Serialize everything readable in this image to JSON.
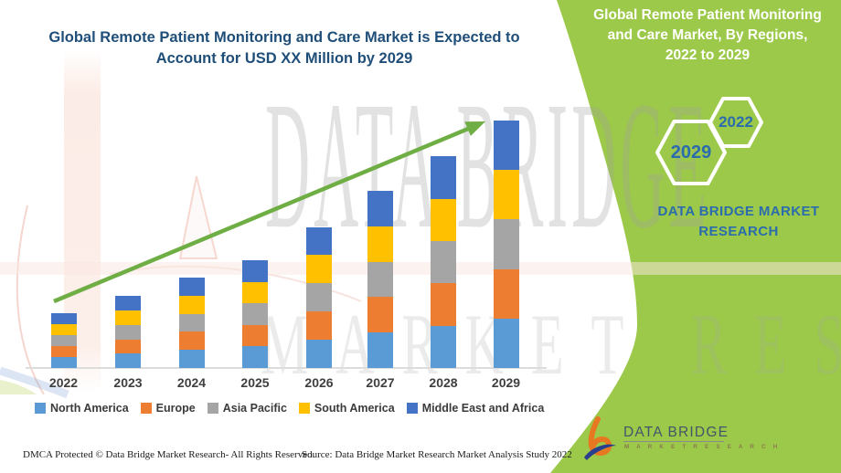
{
  "titles": {
    "main_line1": "Global Remote Patient Monitoring and Care Market is Expected to",
    "main_line2": "Account for USD XX Million by 2029"
  },
  "panel": {
    "title_line1": "Global Remote Patient Monitoring",
    "title_line2": "and Care Market, By Regions,",
    "title_line3": "2022 to 2029",
    "brand_line1": "DATA BRIDGE MARKET",
    "brand_line2": "RESEARCH"
  },
  "hexagons": [
    {
      "label": "2029"
    },
    {
      "label": "2022"
    }
  ],
  "watermark": {
    "line1": "DATA BRIDGE",
    "line2": "MARKET RESEARCH"
  },
  "chart_data": {
    "type": "bar",
    "stacked": true,
    "title": "Global Remote Patient Monitoring and Care Market is Expected to Account for USD XX Million by 2029",
    "xlabel": "",
    "ylabel": "",
    "y_axis": "hidden (no tick labels; magnitude cited as USD XX Million)",
    "grid": false,
    "legend_position": "bottom",
    "categories": [
      "2022",
      "2023",
      "2024",
      "2025",
      "2026",
      "2027",
      "2028",
      "2029"
    ],
    "totals_relative": [
      22,
      29,
      36.5,
      43.5,
      57,
      71.5,
      85.5,
      100
    ],
    "series": [
      {
        "name": "North America",
        "color": "#5B9BD5",
        "values": [
          4.4,
          5.8,
          7.3,
          8.7,
          11.4,
          14.3,
          17.1,
          20.0
        ]
      },
      {
        "name": "Europe",
        "color": "#ED7D31",
        "values": [
          4.4,
          5.8,
          7.3,
          8.7,
          11.4,
          14.3,
          17.1,
          20.0
        ]
      },
      {
        "name": "Asia Pacific",
        "color": "#A5A5A5",
        "values": [
          4.4,
          5.8,
          7.3,
          8.7,
          11.4,
          14.3,
          17.1,
          20.0
        ]
      },
      {
        "name": "South America",
        "color": "#FFC000",
        "values": [
          4.4,
          5.8,
          7.3,
          8.7,
          11.4,
          14.3,
          17.1,
          20.0
        ]
      },
      {
        "name": "Middle East and Africa",
        "color": "#4472C4",
        "values": [
          4.4,
          5.8,
          7.3,
          8.7,
          11.4,
          14.3,
          17.1,
          20.0
        ]
      }
    ],
    "annotations": [
      "upward green trend arrow from 2022 to 2029"
    ]
  },
  "footer": {
    "dmca": "DMCA Protected © Data Bridge Market Research- All Rights Reserved.",
    "source": "Source: Data Bridge Market Research Market Analysis Study 2022"
  },
  "logo": {
    "name": "DATA BRIDGE",
    "sub": "M A R K E T   R E S E A R C H"
  },
  "colors": {
    "panel_green": "#9CC94A",
    "title_blue": "#1F4E79",
    "accent_blue_on_green": "#2B6CAD",
    "arrow_green": "#6FAE44",
    "axis_gray": "#DCDCDC",
    "label_gray": "#3F3F3F"
  }
}
